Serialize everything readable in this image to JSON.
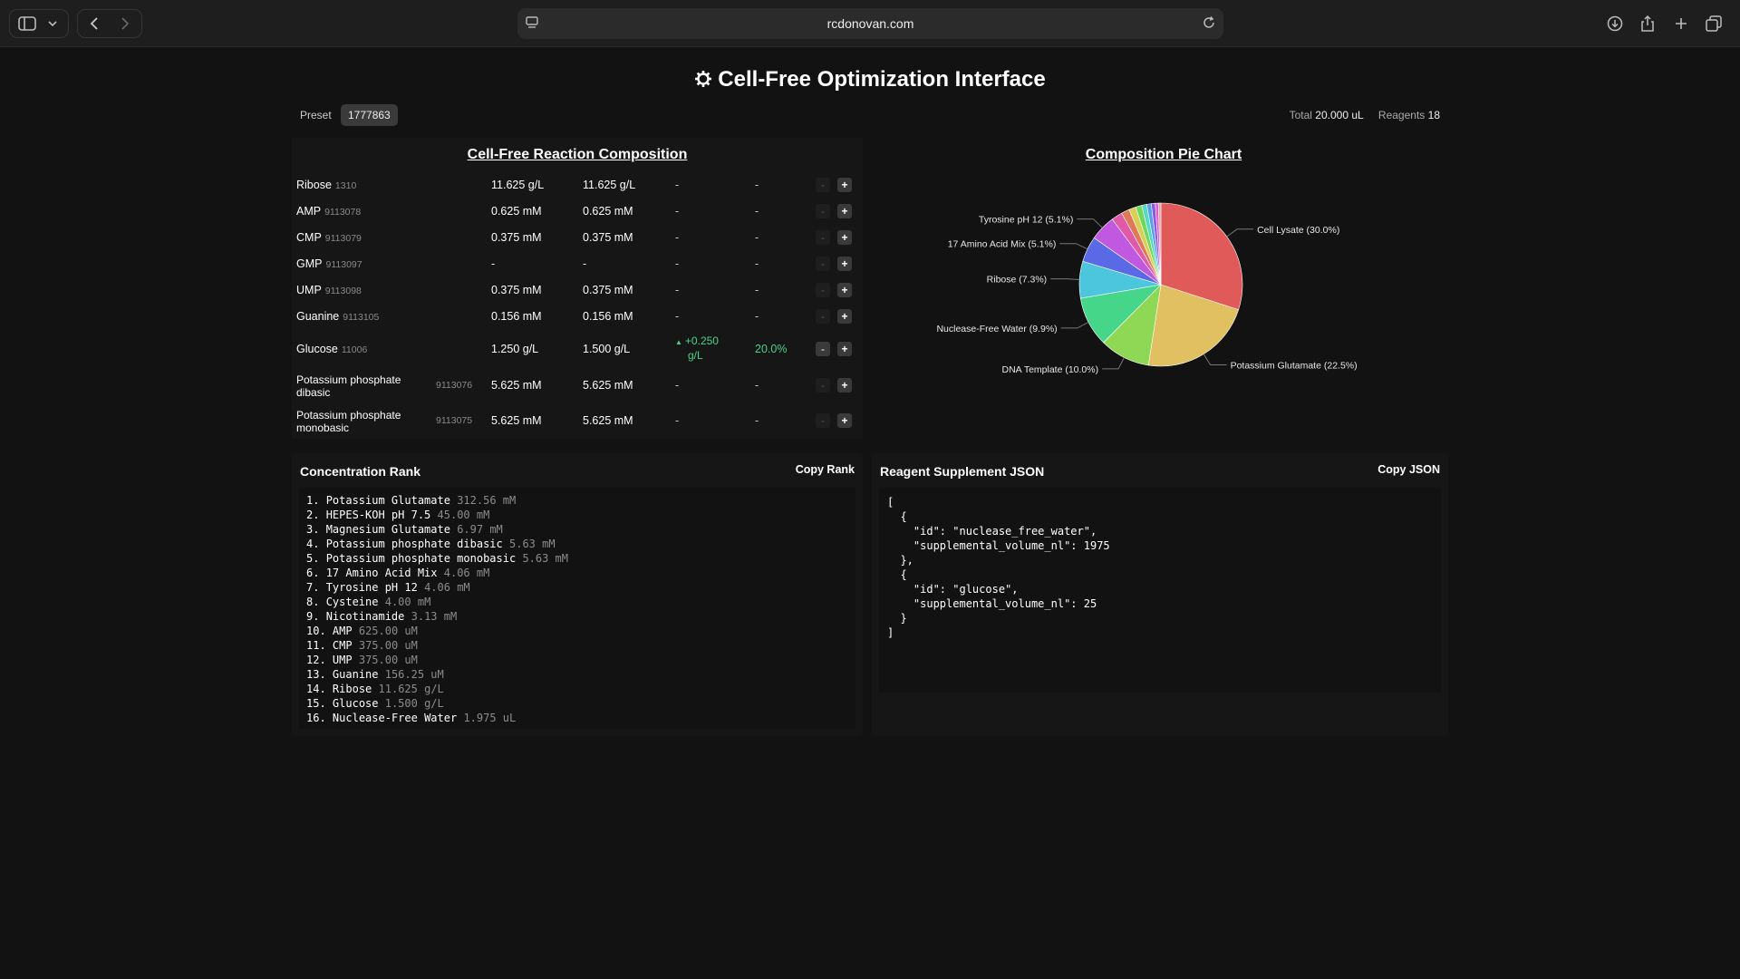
{
  "browser": {
    "url": "rcdonovan.com"
  },
  "page": {
    "title": "Cell-Free Optimization Interface",
    "title_icon": "gear-icon",
    "preset_label": "Preset",
    "preset_value": "1777863",
    "total_label": "Total",
    "total_value": "20.000 uL",
    "reagents_label": "Reagents",
    "reagents_value": "18"
  },
  "composition": {
    "title": "Cell-Free Reaction Composition",
    "rows": [
      {
        "name": "Ribose",
        "id": "1310",
        "current": "11.625 g/L",
        "target": "11.625 g/L",
        "delta": "-",
        "pct": "-"
      },
      {
        "name": "AMP",
        "id": "9113078",
        "current": "0.625 mM",
        "target": "0.625 mM",
        "delta": "-",
        "pct": "-"
      },
      {
        "name": "CMP",
        "id": "9113079",
        "current": "0.375 mM",
        "target": "0.375 mM",
        "delta": "-",
        "pct": "-"
      },
      {
        "name": "GMP",
        "id": "9113097",
        "current": "-",
        "target": "-",
        "delta": "-",
        "pct": "-"
      },
      {
        "name": "UMP",
        "id": "9113098",
        "current": "0.375 mM",
        "target": "0.375 mM",
        "delta": "-",
        "pct": "-"
      },
      {
        "name": "Guanine",
        "id": "9113105",
        "current": "0.156 mM",
        "target": "0.156 mM",
        "delta": "-",
        "pct": "-"
      },
      {
        "name": "Glucose",
        "id": "11006",
        "current": "1.250 g/L",
        "target": "1.500 g/L",
        "delta_arrow": "▲",
        "delta": "+0.250",
        "delta_unit": "g/L",
        "pct": "20.0%"
      },
      {
        "name_line1": "Potassium phosphate",
        "name_line2": "dibasic",
        "id": "9113076",
        "current": "5.625 mM",
        "target": "5.625 mM",
        "delta": "-",
        "pct": "-"
      },
      {
        "name_line1": "Potassium phosphate",
        "name_line2": "monobasic",
        "id": "9113075",
        "current": "5.625 mM",
        "target": "5.625 mM",
        "delta": "-",
        "pct": "-"
      }
    ],
    "minus_label": "-",
    "plus_label": "+"
  },
  "chart_data": {
    "type": "pie",
    "title": "Composition Pie Chart",
    "slices": [
      {
        "label": "Cell Lysate (30.0%)",
        "value": 30.0,
        "color": "#e05a5a"
      },
      {
        "label": "Potassium Glutamate (22.5%)",
        "value": 22.5,
        "color": "#e0c060"
      },
      {
        "label": "DNA Template (10.0%)",
        "value": 10.0,
        "color": "#8ed855"
      },
      {
        "label": "Nuclease-Free Water (9.9%)",
        "value": 9.9,
        "color": "#45d68a"
      },
      {
        "label": "Ribose (7.3%)",
        "value": 7.3,
        "color": "#4cc6dc"
      },
      {
        "label": "17 Amino Acid Mix (5.1%)",
        "value": 5.1,
        "color": "#5a6ae6"
      },
      {
        "label": "Tyrosine pH 12 (5.1%)",
        "value": 5.1,
        "color": "#c158e0"
      },
      {
        "label": "",
        "value": 2.2,
        "color": "#e05aa8"
      },
      {
        "label": "",
        "value": 1.6,
        "color": "#e0795a"
      },
      {
        "label": "",
        "value": 1.4,
        "color": "#d8d055"
      },
      {
        "label": "",
        "value": 1.2,
        "color": "#6fd85a"
      },
      {
        "label": "",
        "value": 1.0,
        "color": "#55d8c6"
      },
      {
        "label": "",
        "value": 0.9,
        "color": "#5aa0e6"
      },
      {
        "label": "",
        "value": 0.8,
        "color": "#8a5ae6"
      },
      {
        "label": "",
        "value": 0.6,
        "color": "#e05ad0"
      },
      {
        "label": "",
        "value": 0.5,
        "color": "#e8a0a0"
      }
    ]
  },
  "rank": {
    "title": "Concentration Rank",
    "copy_label": "Copy Rank",
    "items": [
      {
        "n": "1.",
        "name": "Potassium Glutamate",
        "value": "312.56 mM"
      },
      {
        "n": "2.",
        "name": "HEPES-KOH pH 7.5",
        "value": "45.00 mM"
      },
      {
        "n": "3.",
        "name": "Magnesium Glutamate",
        "value": "6.97 mM"
      },
      {
        "n": "4.",
        "name": "Potassium phosphate dibasic",
        "value": "5.63 mM"
      },
      {
        "n": "5.",
        "name": "Potassium phosphate monobasic",
        "value": "5.63 mM"
      },
      {
        "n": "6.",
        "name": "17 Amino Acid Mix",
        "value": "4.06 mM"
      },
      {
        "n": "7.",
        "name": "Tyrosine pH 12",
        "value": "4.06 mM"
      },
      {
        "n": "8.",
        "name": "Cysteine",
        "value": "4.00 mM"
      },
      {
        "n": "9.",
        "name": "Nicotinamide",
        "value": "3.13 mM"
      },
      {
        "n": "10.",
        "name": "AMP",
        "value": "625.00 uM"
      },
      {
        "n": "11.",
        "name": "CMP",
        "value": "375.00 uM"
      },
      {
        "n": "12.",
        "name": "UMP",
        "value": "375.00 uM"
      },
      {
        "n": "13.",
        "name": "Guanine",
        "value": "156.25 uM"
      },
      {
        "n": "14.",
        "name": "Ribose",
        "value": "11.625 g/L"
      },
      {
        "n": "15.",
        "name": "Glucose",
        "value": "1.500 g/L"
      },
      {
        "n": "16.",
        "name": "Nuclease-Free Water",
        "value": "1.975 uL"
      }
    ]
  },
  "json_panel": {
    "title": "Reagent Supplement JSON",
    "copy_label": "Copy JSON",
    "text": "[\n  {\n    \"id\": \"nuclease_free_water\",\n    \"supplemental_volume_nl\": 1975\n  },\n  {\n    \"id\": \"glucose\",\n    \"supplemental_volume_nl\": 25\n  }\n]"
  }
}
